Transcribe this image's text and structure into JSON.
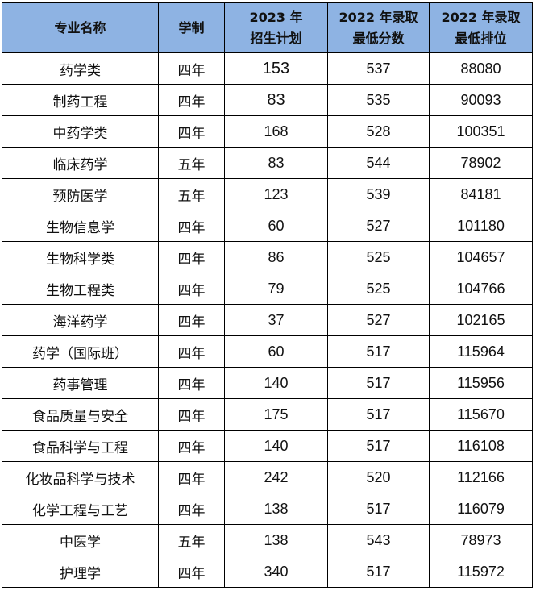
{
  "header": {
    "major": "专业名称",
    "duration": "学制",
    "plan_line1": "2023 年",
    "plan_line2": "招生计划",
    "score_line1": "2022 年录取",
    "score_line2": "最低分数",
    "rank_line1": "2022 年录取",
    "rank_line2": "最低排位"
  },
  "rows": [
    {
      "major": "药学类",
      "duration": "四年",
      "plan": "153",
      "score": "537",
      "rank": "88080"
    },
    {
      "major": "制药工程",
      "duration": "四年",
      "plan": "83",
      "score": "535",
      "rank": "90093"
    },
    {
      "major": "中药学类",
      "duration": "四年",
      "plan": "168",
      "score": "528",
      "rank": "100351"
    },
    {
      "major": "临床药学",
      "duration": "五年",
      "plan": "83",
      "score": "544",
      "rank": "78902"
    },
    {
      "major": "预防医学",
      "duration": "五年",
      "plan": "123",
      "score": "539",
      "rank": "84181"
    },
    {
      "major": "生物信息学",
      "duration": "四年",
      "plan": "60",
      "score": "527",
      "rank": "101180"
    },
    {
      "major": "生物科学类",
      "duration": "四年",
      "plan": "86",
      "score": "525",
      "rank": "104657"
    },
    {
      "major": "生物工程类",
      "duration": "四年",
      "plan": "79",
      "score": "525",
      "rank": "104766"
    },
    {
      "major": "海洋药学",
      "duration": "四年",
      "plan": "37",
      "score": "527",
      "rank": "102165"
    },
    {
      "major": "药学（国际班）",
      "duration": "四年",
      "plan": "60",
      "score": "517",
      "rank": "115964"
    },
    {
      "major": "药事管理",
      "duration": "四年",
      "plan": "140",
      "score": "517",
      "rank": "115956"
    },
    {
      "major": "食品质量与安全",
      "duration": "四年",
      "plan": "175",
      "score": "517",
      "rank": "115670"
    },
    {
      "major": "食品科学与工程",
      "duration": "四年",
      "plan": "140",
      "score": "517",
      "rank": "116108"
    },
    {
      "major": "化妆品科学与技术",
      "duration": "四年",
      "plan": "242",
      "score": "520",
      "rank": "112166"
    },
    {
      "major": "化学工程与工艺",
      "duration": "四年",
      "plan": "138",
      "score": "517",
      "rank": "116079"
    },
    {
      "major": "中医学",
      "duration": "五年",
      "plan": "138",
      "score": "543",
      "rank": "78973"
    },
    {
      "major": "护理学",
      "duration": "四年",
      "plan": "340",
      "score": "517",
      "rank": "115972"
    }
  ]
}
